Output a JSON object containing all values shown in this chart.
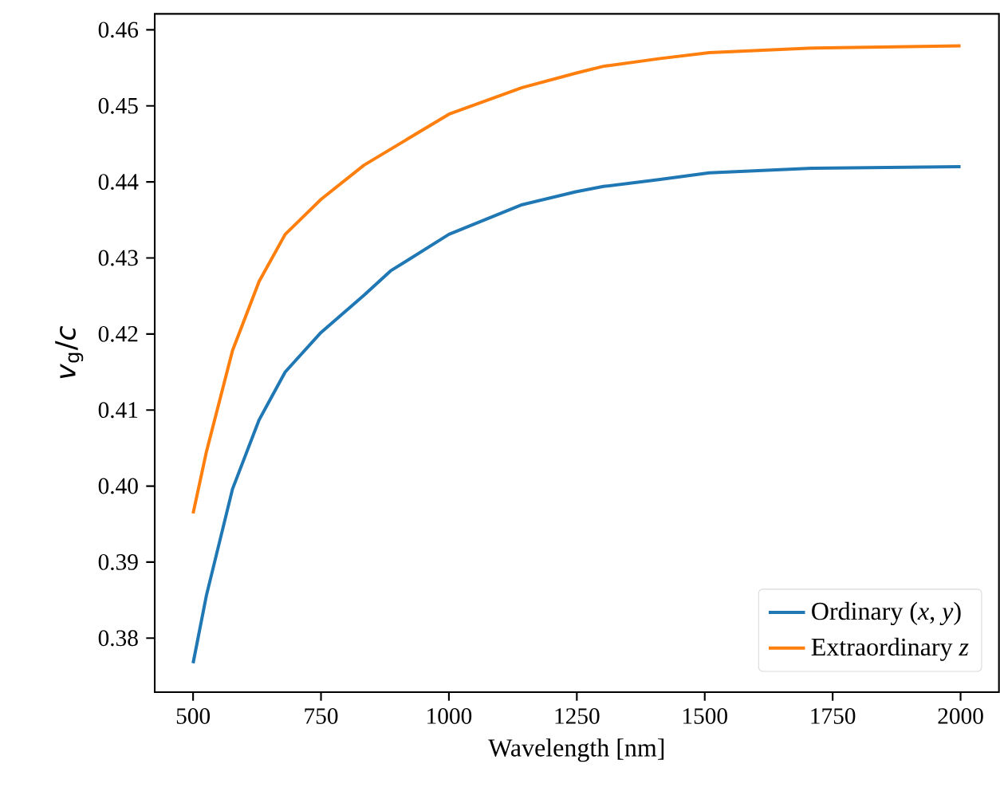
{
  "chart_data": {
    "type": "line",
    "xlabel": "Wavelength [nm]",
    "ylabel": "*v*$_{g}$/*c*",
    "xlim": [
      425,
      2075
    ],
    "ylim": [
      0.3729,
      0.4621
    ],
    "xticks": [
      500,
      750,
      1000,
      1250,
      1500,
      1750,
      2000
    ],
    "yticks": [
      0.38,
      0.39,
      {
        "value": 0.4,
        "label": "0.40"
      },
      0.41,
      0.42,
      0.43,
      0.44,
      0.45,
      0.46
    ],
    "legend": "bottom right",
    "grid": false,
    "marker": "none",
    "line_style": "solid",
    "series": [
      {
        "name": "Ordinary (*x*, *y*)",
        "color": "#1f77b4",
        "x": [
          500,
          526,
          577,
          629,
          680,
          750,
          834,
          886,
          1000,
          1143,
          1248,
          1302,
          1410,
          1509,
          1713,
          2000
        ],
        "values": [
          0.3767,
          0.3856,
          0.3996,
          0.4087,
          0.415,
          0.4202,
          0.4251,
          0.4283,
          0.4331,
          0.437,
          0.4387,
          0.4394,
          0.4403,
          0.4412,
          0.4418,
          0.442
        ]
      },
      {
        "name": "Extraordinary *z*",
        "color": "#ff7f0e",
        "x": [
          500,
          526,
          577,
          629,
          680,
          750,
          834,
          886,
          1000,
          1143,
          1248,
          1302,
          1410,
          1509,
          1713,
          2000
        ],
        "values": [
          0.3964,
          0.4045,
          0.4178,
          0.4269,
          0.4331,
          0.4377,
          0.4422,
          0.4443,
          0.4489,
          0.4524,
          0.4543,
          0.4552,
          0.4562,
          0.457,
          0.4576,
          0.4579
        ]
      }
    ]
  }
}
